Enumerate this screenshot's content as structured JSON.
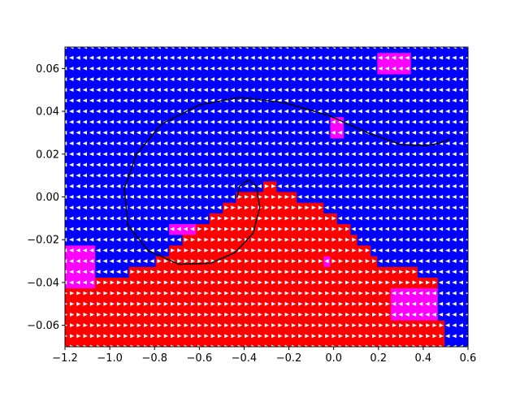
{
  "chart_data": {
    "type": "heatmap",
    "title": "",
    "xlabel": "",
    "ylabel": "",
    "xlim": [
      -1.2,
      0.6
    ],
    "ylim": [
      -0.07,
      0.07
    ],
    "grid": false,
    "legend": "none",
    "x_ticks": [
      -1.2,
      -1.0,
      -0.8,
      -0.6,
      -0.4,
      -0.2,
      0.0,
      0.2,
      0.4,
      0.6
    ],
    "x_tick_labels": [
      "−1.2",
      "−1.0",
      "−0.8",
      "−0.6",
      "−0.4",
      "−0.2",
      "0.0",
      "0.2",
      "0.4",
      "0.6"
    ],
    "y_ticks": [
      -0.06,
      -0.04,
      -0.02,
      0.0,
      0.02,
      0.04,
      0.06
    ],
    "y_tick_labels": [
      "−0.06",
      "−0.04",
      "−0.02",
      "0.00",
      "0.02",
      "0.04",
      "0.06"
    ],
    "policy_grid": {
      "x_start": -1.2,
      "x_step": 0.03,
      "y_start": -0.07,
      "y_step": 0.005,
      "region_classes": {
        "left": {
          "color": "#0000ff",
          "arrow": "left"
        },
        "right": {
          "color": "#ff0000",
          "arrow": "right"
        },
        "neutral": {
          "color": "#ff00ff",
          "arrow": "left"
        }
      },
      "boundary_x": [
        -1.2,
        -1.1,
        -1.0,
        -0.9,
        -0.8,
        -0.7,
        -0.6,
        -0.5,
        -0.45,
        -0.4,
        -0.35,
        -0.3,
        -0.25,
        -0.2,
        -0.1,
        -0.05,
        0.0,
        0.05,
        0.1,
        0.15,
        0.2,
        0.25,
        0.3,
        0.35,
        0.4,
        0.45,
        0.5,
        0.55,
        0.6
      ],
      "boundary_y": [
        -0.045,
        -0.042,
        -0.038,
        -0.034,
        -0.03,
        -0.022,
        -0.013,
        -0.006,
        -0.003,
        0.002,
        0.004,
        0.006,
        0.005,
        0.002,
        -0.003,
        -0.005,
        -0.01,
        -0.013,
        -0.02,
        -0.025,
        -0.03,
        -0.032,
        -0.032,
        -0.034,
        -0.037,
        -0.04,
        -0.07,
        -0.07,
        -0.07
      ],
      "neutral_patches": [
        {
          "x": [
            -1.2,
            -1.08
          ],
          "y": [
            -0.042,
            -0.025
          ]
        },
        {
          "x": [
            -0.72,
            -0.63
          ],
          "y": [
            -0.02,
            -0.012
          ]
        },
        {
          "x": [
            -0.06,
            -0.03
          ],
          "y": [
            -0.032,
            -0.028
          ]
        },
        {
          "x": [
            -0.03,
            0.06
          ],
          "y": [
            0.03,
            0.035
          ]
        },
        {
          "x": [
            0.2,
            0.36
          ],
          "y": [
            0.055,
            0.065
          ]
        },
        {
          "x": [
            0.27,
            0.45
          ],
          "y": [
            -0.06,
            -0.045
          ]
        }
      ]
    },
    "trajectory": {
      "color": "#000000",
      "x": [
        -0.43,
        -0.42,
        -0.38,
        -0.345,
        -0.33,
        -0.36,
        -0.44,
        -0.55,
        -0.69,
        -0.83,
        -0.92,
        -0.935,
        -0.88,
        -0.77,
        -0.6,
        -0.42,
        -0.22,
        -0.02,
        0.15,
        0.3,
        0.41,
        0.47,
        0.52
      ],
      "y": [
        0.0,
        0.005,
        0.008,
        0.005,
        -0.005,
        -0.017,
        -0.026,
        -0.031,
        -0.0315,
        -0.025,
        -0.013,
        0.004,
        0.02,
        0.034,
        0.043,
        0.0465,
        0.044,
        0.038,
        0.03,
        0.0245,
        0.024,
        0.025,
        0.027
      ]
    }
  }
}
